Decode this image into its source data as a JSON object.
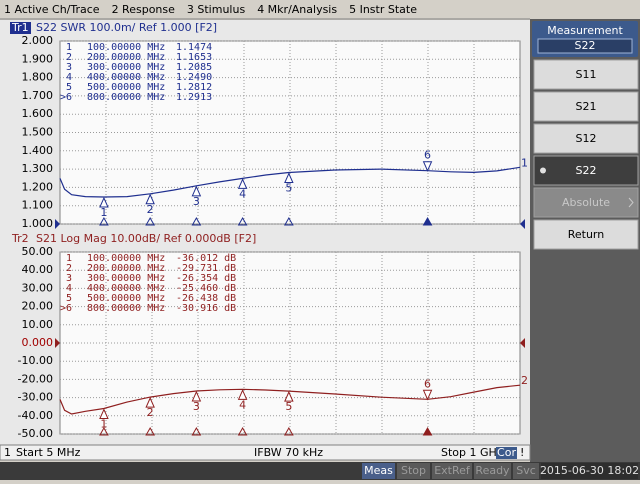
{
  "menu": [
    "1 Active Ch/Trace",
    "2 Response",
    "3 Stimulus",
    "4 Mkr/Analysis",
    "5 Instr State"
  ],
  "softkeys": {
    "title": "Measurement",
    "current": "S22",
    "buttons": [
      {
        "label": "S11"
      },
      {
        "label": "S21"
      },
      {
        "label": "S12"
      },
      {
        "label": "S22",
        "selected": true
      },
      {
        "label": "Absolute",
        "disabled": true
      },
      {
        "label": "Return"
      }
    ]
  },
  "channel_bar": {
    "channel": "1",
    "start": "Start 5 MHz",
    "ifbw": "IFBW 70 kHz",
    "stop": "Stop 1 GHz",
    "cor": "Cor",
    "flag": "!"
  },
  "status_bar": [
    "Meas",
    "Stop",
    "ExtRef",
    "Ready",
    "Svc",
    "2015-06-30 18:02"
  ],
  "chart_data": [
    {
      "type": "line",
      "trace_label": "Tr1",
      "title": "S22 SWR 100.0m/ Ref 1.000 [F2]",
      "end_label": "1",
      "color": "#1f2f8f",
      "active": true,
      "xlim": [
        5,
        1000
      ],
      "x_divisions": 10,
      "ylim": [
        1,
        2
      ],
      "grid": true,
      "ref_value": 1,
      "yticks": [
        {
          "value": 2,
          "label": "2.000"
        },
        {
          "value": 1.9,
          "label": "1.900"
        },
        {
          "value": 1.8,
          "label": "1.800"
        },
        {
          "value": 1.7,
          "label": "1.700"
        },
        {
          "value": 1.6,
          "label": "1.600"
        },
        {
          "value": 1.5,
          "label": "1.500"
        },
        {
          "value": 1.4,
          "label": "1.400"
        },
        {
          "value": 1.3,
          "label": "1.300"
        },
        {
          "value": 1.2,
          "label": "1.200"
        },
        {
          "value": 1.1,
          "label": "1.100"
        },
        {
          "value": 1,
          "label": "1.000"
        }
      ],
      "x": [
        5,
        15,
        30,
        60,
        100,
        150,
        200,
        250,
        300,
        350,
        400,
        450,
        500,
        600,
        700,
        800,
        850,
        900,
        950,
        1000
      ],
      "values": [
        1.25,
        1.19,
        1.16,
        1.15,
        1.1474,
        1.15,
        1.1653,
        1.185,
        1.2085,
        1.23,
        1.249,
        1.268,
        1.2812,
        1.295,
        1.3,
        1.2913,
        1.285,
        1.282,
        1.29,
        1.31
      ],
      "markers": [
        {
          "name": "1",
          "table_name": "1",
          "x": 100,
          "y": 1.1474,
          "x_label": "100.00000 MHz",
          "y_label": "1.1474"
        },
        {
          "name": "2",
          "table_name": "2",
          "x": 200,
          "y": 1.1653,
          "x_label": "200.00000 MHz",
          "y_label": "1.1653"
        },
        {
          "name": "3",
          "table_name": "3",
          "x": 300,
          "y": 1.2085,
          "x_label": "300.00000 MHz",
          "y_label": "1.2085"
        },
        {
          "name": "4",
          "table_name": "4",
          "x": 400,
          "y": 1.249,
          "x_label": "400.00000 MHz",
          "y_label": "1.2490"
        },
        {
          "name": "5",
          "table_name": "5",
          "x": 500,
          "y": 1.2812,
          "x_label": "500.00000 MHz",
          "y_label": "1.2812"
        },
        {
          "name": "6",
          "table_name": ">6",
          "active": true,
          "x": 800,
          "y": 1.2913,
          "x_label": "800.00000 MHz",
          "y_label": "1.2913"
        }
      ]
    },
    {
      "type": "line",
      "trace_label": "Tr2",
      "title": "S21 Log Mag 10.00dB/ Ref 0.000dB [F2]",
      "end_label": "2",
      "color": "#8f1f1f",
      "active": false,
      "xlim": [
        5,
        1000
      ],
      "x_divisions": 10,
      "ylim": [
        -50,
        50
      ],
      "grid": true,
      "ref_value": 0,
      "yticks": [
        {
          "value": 50,
          "label": "50.00"
        },
        {
          "value": 40,
          "label": "40.00"
        },
        {
          "value": 30,
          "label": "30.00"
        },
        {
          "value": 20,
          "label": "20.00"
        },
        {
          "value": 10,
          "label": "10.00"
        },
        {
          "value": 0,
          "label": "0.000"
        },
        {
          "value": -10,
          "label": "-10.00"
        },
        {
          "value": -20,
          "label": "-20.00"
        },
        {
          "value": -30,
          "label": "-30.00"
        },
        {
          "value": -40,
          "label": "-40.00"
        },
        {
          "value": -50,
          "label": "-50.00"
        }
      ],
      "x": [
        5,
        15,
        30,
        60,
        100,
        150,
        200,
        250,
        300,
        350,
        400,
        450,
        500,
        600,
        700,
        800,
        850,
        900,
        950,
        1000
      ],
      "values": [
        -31,
        -37,
        -39,
        -37.5,
        -36.012,
        -32.5,
        -29.731,
        -27.8,
        -26.354,
        -25.7,
        -25.46,
        -25.8,
        -26.438,
        -28,
        -29.8,
        -30.916,
        -29.5,
        -27,
        -24.5,
        -23.2
      ],
      "markers": [
        {
          "name": "1",
          "table_name": "1",
          "x": 100,
          "y": -36.012,
          "x_label": "100.00000 MHz",
          "y_label": "-36.012 dB"
        },
        {
          "name": "2",
          "table_name": "2",
          "x": 200,
          "y": -29.731,
          "x_label": "200.00000 MHz",
          "y_label": "-29.731 dB"
        },
        {
          "name": "3",
          "table_name": "3",
          "x": 300,
          "y": -26.354,
          "x_label": "300.00000 MHz",
          "y_label": "-26.354 dB"
        },
        {
          "name": "4",
          "table_name": "4",
          "x": 400,
          "y": -25.46,
          "x_label": "400.00000 MHz",
          "y_label": "-25.460 dB"
        },
        {
          "name": "5",
          "table_name": "5",
          "x": 500,
          "y": -26.438,
          "x_label": "500.00000 MHz",
          "y_label": "-26.438 dB"
        },
        {
          "name": "6",
          "table_name": ">6",
          "active": true,
          "x": 800,
          "y": -30.916,
          "x_label": "800.00000 MHz",
          "y_label": "-30.916 dB"
        }
      ]
    }
  ]
}
